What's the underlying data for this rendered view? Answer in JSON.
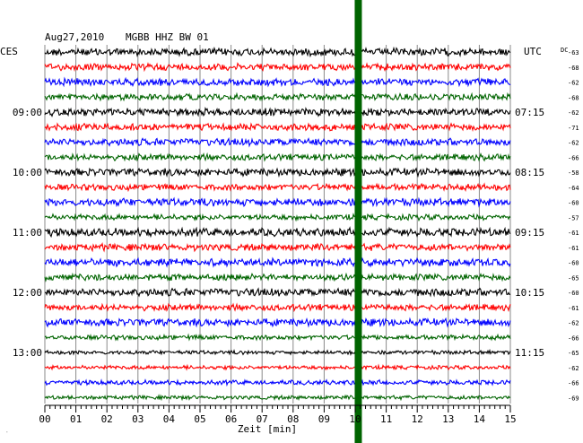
{
  "header": {
    "date": "Aug27,2010",
    "station": "MGBB HHZ BW 01",
    "left_tz": "CES",
    "right_tz": "UTC",
    "dc_label": "DC"
  },
  "corner_mark": "͘",
  "chart_data": {
    "type": "helicorder",
    "x": {
      "label": "Zeit [min]",
      "min": 0,
      "max": 15,
      "tick_labels": [
        "00",
        "01",
        "02",
        "03",
        "04",
        "05",
        "06",
        "07",
        "08",
        "09",
        "10",
        "11",
        "12",
        "13",
        "14",
        "15"
      ]
    },
    "left_time_labels": [
      {
        "trace": 4,
        "text": "09:00"
      },
      {
        "trace": 8,
        "text": "10:00"
      },
      {
        "trace": 12,
        "text": "11:00"
      },
      {
        "trace": 16,
        "text": "12:00"
      },
      {
        "trace": 20,
        "text": "13:00"
      }
    ],
    "right_time_labels": [
      {
        "trace": 4,
        "text": "07:15"
      },
      {
        "trace": 8,
        "text": "08:15"
      },
      {
        "trace": 12,
        "text": "09:15"
      },
      {
        "trace": 16,
        "text": "10:15"
      },
      {
        "trace": 20,
        "text": "11:15"
      }
    ],
    "trace_colors": [
      "#000000",
      "#ff0000",
      "#0000ff",
      "#006400"
    ],
    "traces": [
      {
        "dc": "-63",
        "amp": 3.5
      },
      {
        "dc": "-68",
        "amp": 3.2
      },
      {
        "dc": "-62",
        "amp": 3.4
      },
      {
        "dc": "-68",
        "amp": 3.0
      },
      {
        "dc": "-62",
        "amp": 3.5
      },
      {
        "dc": "-71",
        "amp": 3.2
      },
      {
        "dc": "-62",
        "amp": 3.4
      },
      {
        "dc": "-66",
        "amp": 3.0
      },
      {
        "dc": "-58",
        "amp": 3.5
      },
      {
        "dc": "-64",
        "amp": 3.0
      },
      {
        "dc": "-60",
        "amp": 3.6
      },
      {
        "dc": "-57",
        "amp": 2.6
      },
      {
        "dc": "-61",
        "amp": 3.8
      },
      {
        "dc": "-61",
        "amp": 3.2
      },
      {
        "dc": "-60",
        "amp": 3.6
      },
      {
        "dc": "-65",
        "amp": 3.0
      },
      {
        "dc": "-60",
        "amp": 3.6
      },
      {
        "dc": "-61",
        "amp": 3.0
      },
      {
        "dc": "-62",
        "amp": 3.5
      },
      {
        "dc": "-66",
        "amp": 2.2
      },
      {
        "dc": "-65",
        "amp": 1.8
      },
      {
        "dc": "-62",
        "amp": 1.8
      },
      {
        "dc": "-66",
        "amp": 2.2
      },
      {
        "dc": "-69",
        "amp": 1.8
      }
    ],
    "marker": {
      "minute": 10.1,
      "color": "#006400"
    }
  }
}
